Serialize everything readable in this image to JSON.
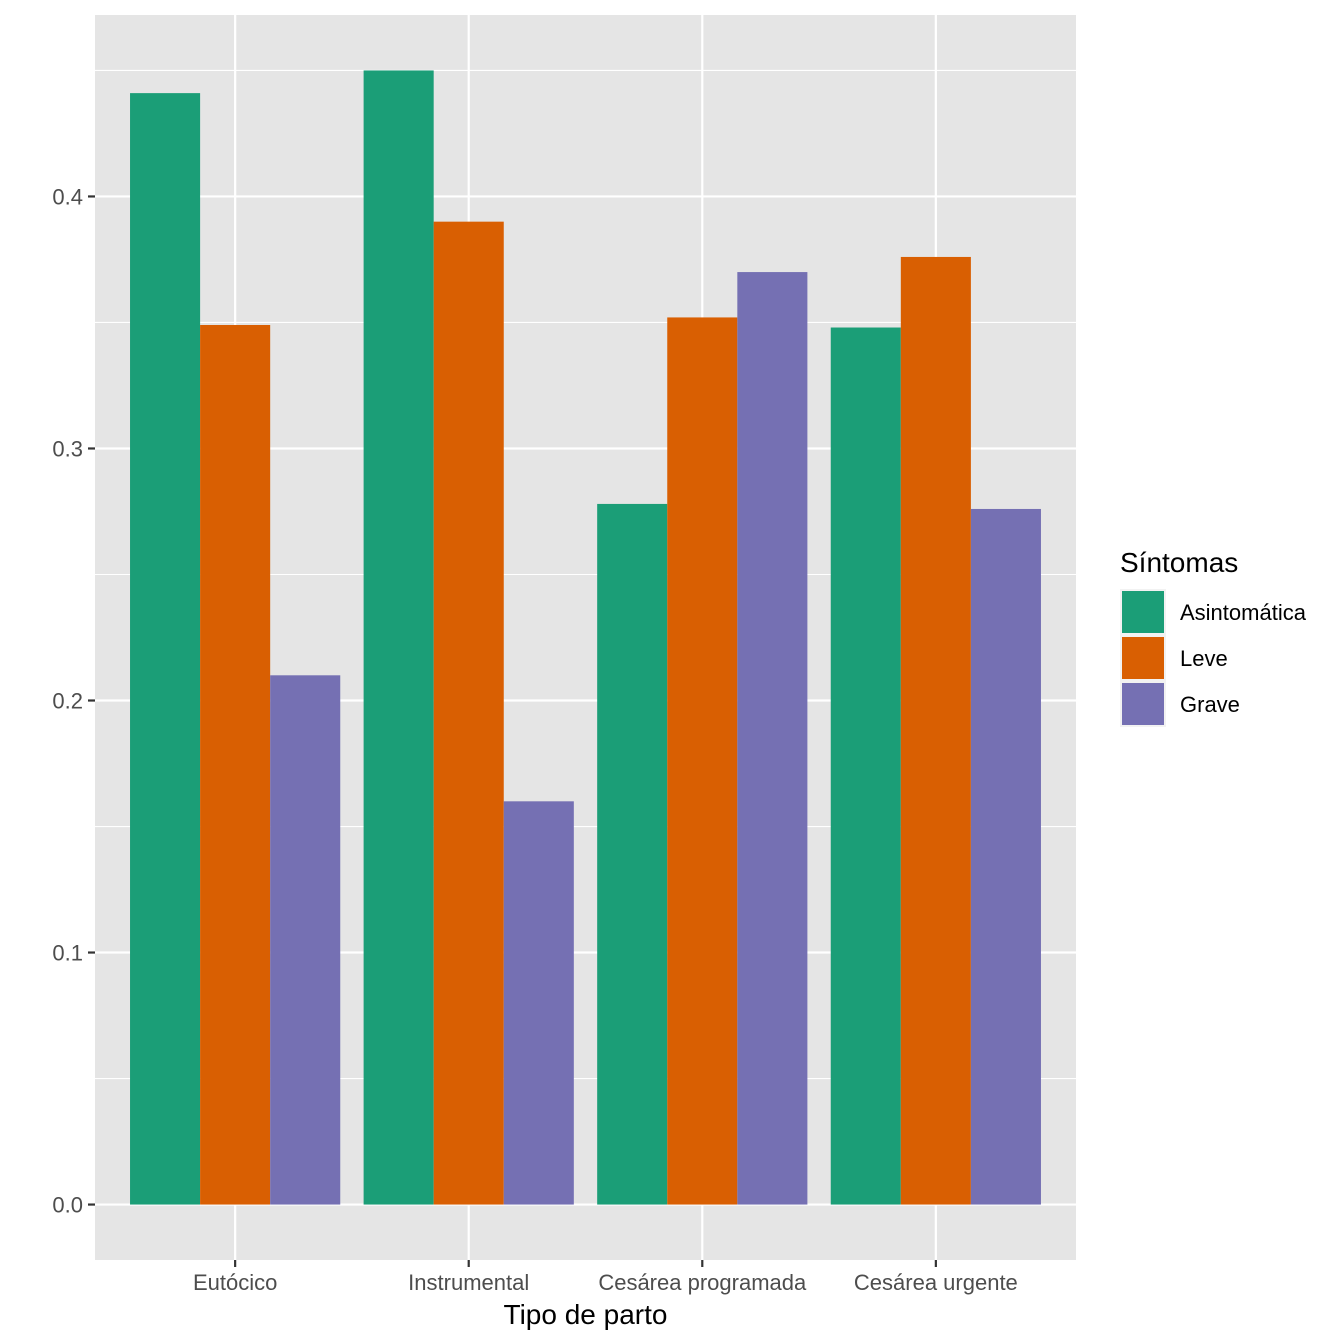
{
  "chart_data": {
    "type": "bar",
    "xlabel": "Tipo de parto",
    "ylabel": "",
    "ylim": [
      -0.022,
      0.472
    ],
    "yticks": [
      0.0,
      0.1,
      0.2,
      0.3,
      0.4
    ],
    "ytick_labels": [
      "0.0",
      "0.1",
      "0.2",
      "0.3",
      "0.4"
    ],
    "categories": [
      "Eutócico",
      "Instrumental",
      "Cesárea programada",
      "Cesárea urgente"
    ],
    "series": [
      {
        "name": "Asintomática",
        "color": "#1B9E77",
        "values": [
          0.441,
          0.45,
          0.278,
          0.348
        ]
      },
      {
        "name": "Leve",
        "color": "#D95F02",
        "values": [
          0.349,
          0.39,
          0.352,
          0.376
        ]
      },
      {
        "name": "Grave",
        "color": "#7570B3",
        "values": [
          0.21,
          0.16,
          0.37,
          0.276
        ]
      }
    ],
    "grid": true,
    "panel_background": "#E5E5E5",
    "legend": {
      "title": "Síntomas",
      "position": "right"
    }
  }
}
